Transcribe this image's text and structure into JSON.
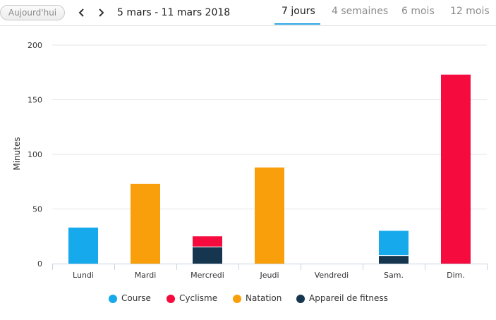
{
  "toolbar": {
    "today_label": "Aujourd'hui",
    "prev_icon": "chevron-left-icon",
    "next_icon": "chevron-right-icon",
    "date_range": "5 mars - 11 mars 2018",
    "tabs": [
      {
        "label": "7 jours",
        "active": true
      },
      {
        "label": "4 semaines",
        "active": false
      },
      {
        "label": "6 mois",
        "active": false
      },
      {
        "label": "12 mois",
        "active": false
      }
    ],
    "accent_color": "#29a4e6"
  },
  "chart_data": {
    "type": "bar",
    "stacked": true,
    "categories": [
      "Lundi",
      "Mardi",
      "Mercredi",
      "Jeudi",
      "Vendredi",
      "Sam.",
      "Dim."
    ],
    "series": [
      {
        "name": "Appareil de fitness",
        "color": "#16354f",
        "values": [
          0,
          0,
          15,
          0,
          0,
          7,
          0
        ]
      },
      {
        "name": "Course",
        "color": "#16a9ec",
        "values": [
          33,
          0,
          0,
          0,
          0,
          23,
          0
        ]
      },
      {
        "name": "Cyclisme",
        "color": "#f50b3e",
        "values": [
          0,
          0,
          10,
          0,
          0,
          0,
          173
        ]
      },
      {
        "name": "Natation",
        "color": "#f99f0b",
        "values": [
          0,
          73,
          0,
          88,
          0,
          0,
          0
        ]
      }
    ],
    "legend_order": [
      "Course",
      "Cyclisme",
      "Natation",
      "Appareil de fitness"
    ],
    "ylabel": "Minutes",
    "ylim": [
      0,
      200
    ],
    "yticks": [
      0,
      50,
      100,
      150,
      200
    ],
    "grid": true,
    "legend_position": "bottom-center"
  }
}
